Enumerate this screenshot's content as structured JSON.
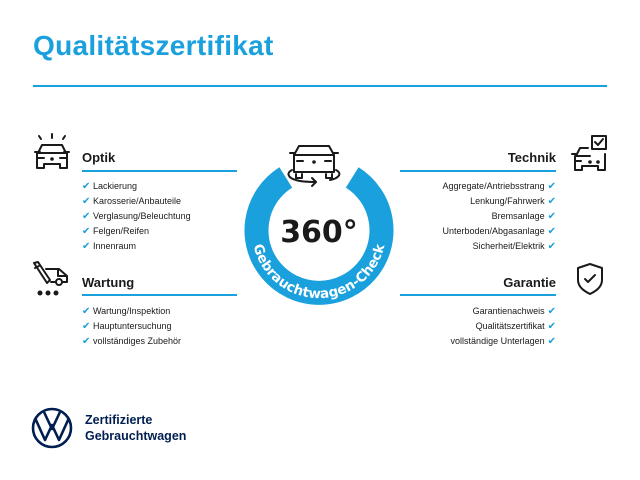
{
  "title": "Qualitätszertifikat",
  "accent_color": "#1aa0dc",
  "brand_color": "#001e50",
  "sections": {
    "optik": {
      "heading": "Optik",
      "icon": "car-lights-icon",
      "items": [
        "Lackierung",
        "Karosserie/Anbauteile",
        "Verglasung/Beleuchtung",
        "Felgen/Reifen",
        "Innenraum"
      ]
    },
    "wartung": {
      "heading": "Wartung",
      "icon": "service-tools-car-icon",
      "items": [
        "Wartung/Inspektion",
        "Hauptuntersuchung",
        "vollständiges Zubehör"
      ]
    },
    "technik": {
      "heading": "Technik",
      "icon": "car-checklist-icon",
      "items": [
        "Aggregate/Antriebsstrang",
        "Lenkung/Fahrwerk",
        "Bremsanlage",
        "Unterboden/Abgasanlage",
        "Sicherheit/Elektrik"
      ]
    },
    "garantie": {
      "heading": "Garantie",
      "icon": "shield-check-icon",
      "items": [
        "Garantienachweis",
        "Qualitätszertifikat",
        "vollständige Unterlagen"
      ]
    }
  },
  "check_glyph": "✔",
  "badge": {
    "value": "360°",
    "ring_text": "Gebrauchtwagen-Check",
    "icon": "car-rotate-icon"
  },
  "footer": {
    "line1": "Zertifizierte",
    "line2": "Gebrauchtwagen",
    "logo": "vw-logo"
  }
}
